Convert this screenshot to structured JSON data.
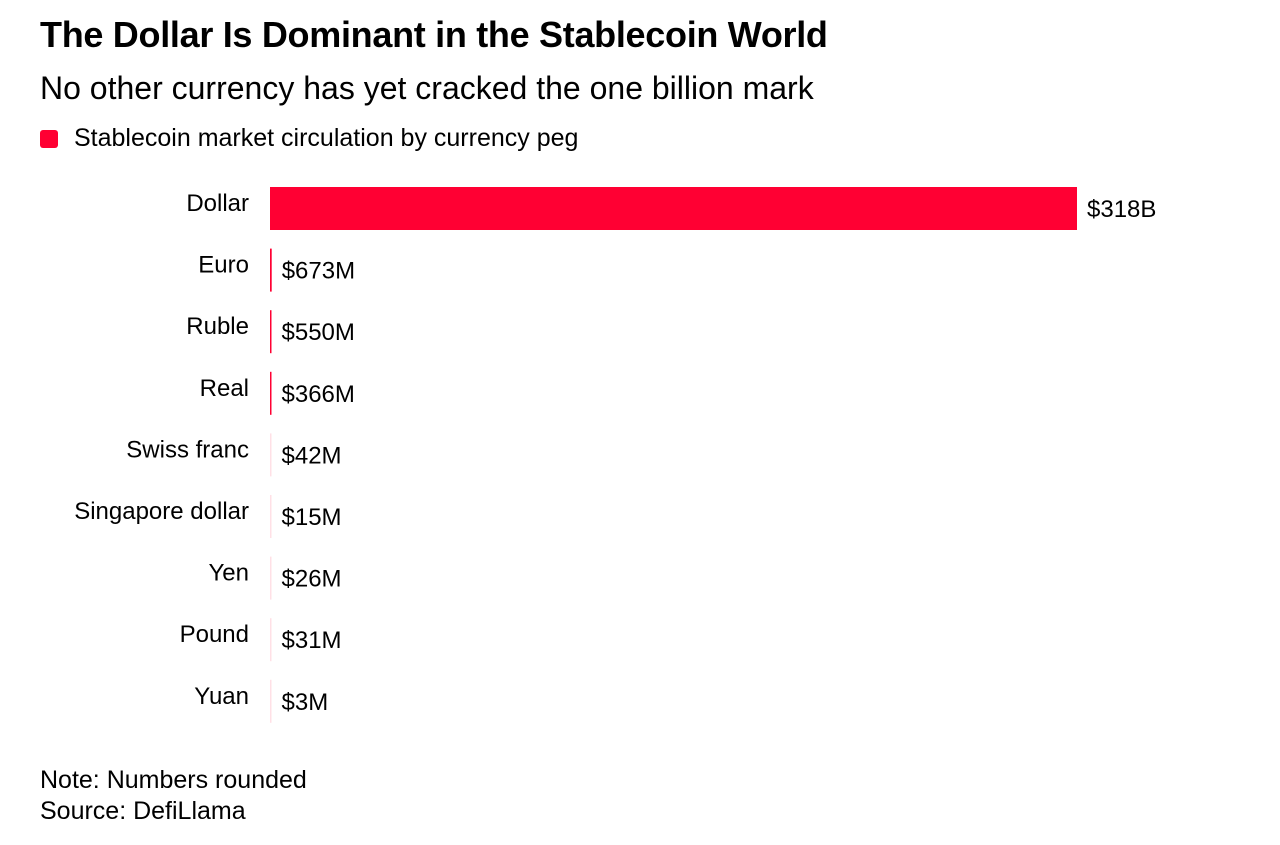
{
  "title": "The Dollar Is Dominant in the Stablecoin World",
  "subtitle": "No other currency has yet cracked the one billion mark",
  "legend": {
    "label": "Stablecoin market circulation by currency peg",
    "color": "#ff0033"
  },
  "colors": {
    "bar": "#ff0033",
    "text": "#000000",
    "background": "#ffffff"
  },
  "chart_data": {
    "type": "bar",
    "orientation": "horizontal",
    "title": "The Dollar Is Dominant in the Stablecoin World",
    "subtitle": "No other currency has yet cracked the one billion mark",
    "categories": [
      "Dollar",
      "Euro",
      "Ruble",
      "Real",
      "Swiss franc",
      "Singapore dollar",
      "Yen",
      "Pound",
      "Yuan"
    ],
    "series": [
      {
        "name": "Stablecoin market circulation by currency peg",
        "values": [
          318000000000,
          673000000,
          550000000,
          366000000,
          42000000,
          15000000,
          26000000,
          31000000,
          3000000
        ],
        "labels": [
          "$318B",
          "$673M",
          "$550M",
          "$366M",
          "$42M",
          "$15M",
          "$26M",
          "$31M",
          "$3M"
        ]
      }
    ],
    "xlim": [
      0,
      318000000000
    ],
    "grid": false,
    "legend": "top-left"
  },
  "footer": {
    "note": "Note: Numbers rounded",
    "source": "Source: DefiLlama"
  }
}
